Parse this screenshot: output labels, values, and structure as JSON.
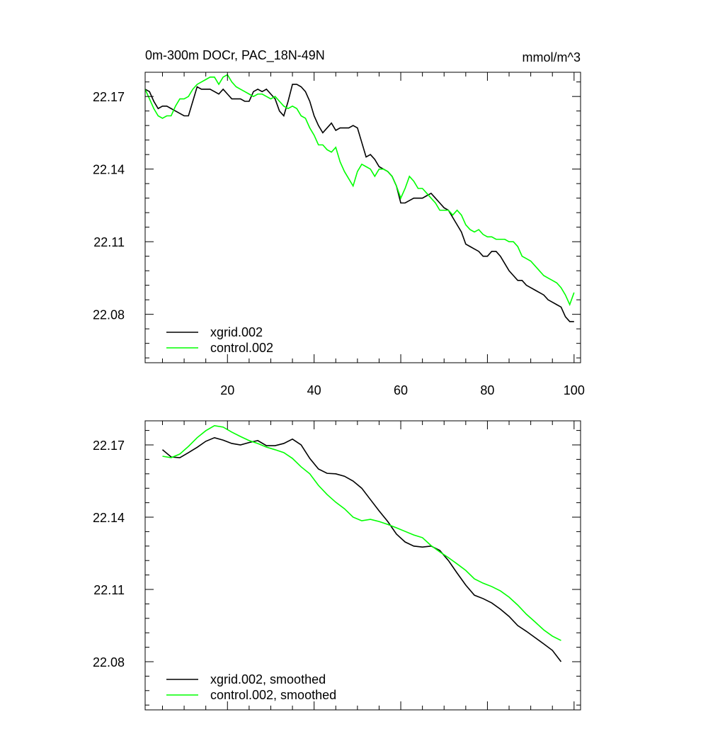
{
  "chart_data": [
    {
      "type": "line",
      "title": "0m-300m DOCr, PAC_18N-49N",
      "units": "mmol/m^3",
      "x": [
        1,
        2,
        3,
        4,
        5,
        6,
        7,
        8,
        9,
        10,
        11,
        12,
        13,
        14,
        15,
        16,
        17,
        18,
        19,
        20,
        21,
        22,
        23,
        24,
        25,
        26,
        27,
        28,
        29,
        30,
        31,
        32,
        33,
        34,
        35,
        36,
        37,
        38,
        39,
        40,
        41,
        42,
        43,
        44,
        45,
        46,
        47,
        48,
        49,
        50,
        51,
        52,
        53,
        54,
        55,
        56,
        57,
        58,
        59,
        60,
        61,
        62,
        63,
        64,
        65,
        66,
        67,
        68,
        69,
        70,
        71,
        72,
        73,
        74,
        75,
        76,
        77,
        78,
        79,
        80,
        81,
        82,
        83,
        84,
        85,
        86,
        87,
        88,
        89,
        90,
        91,
        92,
        93,
        94,
        95,
        96,
        97,
        98,
        99,
        100
      ],
      "series": [
        {
          "name": "xgrid.002",
          "color": "#000000",
          "values": [
            22.173,
            22.172,
            22.168,
            22.165,
            22.166,
            22.166,
            22.165,
            22.164,
            22.163,
            22.162,
            22.162,
            22.168,
            22.174,
            22.173,
            22.173,
            22.173,
            22.172,
            22.171,
            22.173,
            22.171,
            22.169,
            22.169,
            22.169,
            22.168,
            22.168,
            22.172,
            22.173,
            22.172,
            22.173,
            22.171,
            22.169,
            22.164,
            22.162,
            22.168,
            22.175,
            22.175,
            22.174,
            22.172,
            22.168,
            22.162,
            22.158,
            22.155,
            22.157,
            22.159,
            22.156,
            22.157,
            22.157,
            22.157,
            22.158,
            22.157,
            22.151,
            22.145,
            22.146,
            22.144,
            22.141,
            22.14,
            22.139,
            22.137,
            22.133,
            22.126,
            22.126,
            22.127,
            22.128,
            22.128,
            22.128,
            22.129,
            22.13,
            22.128,
            22.126,
            22.124,
            22.123,
            22.12,
            22.117,
            22.114,
            22.109,
            22.108,
            22.107,
            22.106,
            22.104,
            22.104,
            22.106,
            22.106,
            22.104,
            22.101,
            22.098,
            22.096,
            22.094,
            22.094,
            22.092,
            22.091,
            22.09,
            22.089,
            22.088,
            22.086,
            22.085,
            22.084,
            22.083,
            22.079,
            22.077,
            22.077
          ]
        },
        {
          "name": "control.002",
          "color": "#00ff00",
          "values": [
            22.173,
            22.169,
            22.165,
            22.162,
            22.161,
            22.162,
            22.162,
            22.166,
            22.169,
            22.169,
            22.17,
            22.173,
            22.175,
            22.176,
            22.177,
            22.178,
            22.178,
            22.175,
            22.178,
            22.179,
            22.176,
            22.174,
            22.173,
            22.172,
            22.171,
            22.17,
            22.171,
            22.171,
            22.17,
            22.169,
            22.17,
            22.168,
            22.166,
            22.165,
            22.166,
            22.165,
            22.162,
            22.161,
            22.157,
            22.154,
            22.15,
            22.15,
            22.148,
            22.147,
            22.149,
            22.143,
            22.139,
            22.136,
            22.133,
            22.139,
            22.142,
            22.141,
            22.14,
            22.137,
            22.14,
            22.14,
            22.139,
            22.137,
            22.133,
            22.128,
            22.132,
            22.137,
            22.135,
            22.132,
            22.132,
            22.13,
            22.128,
            22.126,
            22.123,
            22.123,
            22.123,
            22.121,
            22.123,
            22.121,
            22.117,
            22.115,
            22.114,
            22.115,
            22.113,
            22.112,
            22.112,
            22.111,
            22.111,
            22.111,
            22.11,
            22.11,
            22.108,
            22.104,
            22.103,
            22.102,
            22.1,
            22.098,
            22.096,
            22.095,
            22.094,
            22.093,
            22.091,
            22.088,
            22.084,
            22.089
          ]
        }
      ],
      "xlim": [
        1,
        101.5
      ],
      "xticks": [
        20,
        40,
        60,
        80,
        100
      ],
      "xminorticks": [
        5,
        10,
        15,
        25,
        30,
        35,
        45,
        50,
        55,
        65,
        70,
        75,
        85,
        90,
        95
      ],
      "ylim": [
        22.06,
        22.18
      ],
      "yticks": [
        22.08,
        22.11,
        22.14,
        22.17
      ],
      "yminorticks": [
        22.062,
        22.068,
        22.074,
        22.086,
        22.092,
        22.098,
        22.104,
        22.116,
        22.122,
        22.128,
        22.134,
        22.146,
        22.152,
        22.158,
        22.164,
        22.176
      ],
      "show_xtick_labels": true,
      "legend": "lower left"
    },
    {
      "type": "line",
      "x": [
        5,
        7,
        9,
        11,
        13,
        15,
        17,
        19,
        21,
        23,
        25,
        27,
        29,
        31,
        33,
        35,
        37,
        39,
        41,
        43,
        45,
        47,
        49,
        51,
        53,
        55,
        57,
        59,
        61,
        63,
        65,
        67,
        69,
        71,
        73,
        75,
        77,
        79,
        81,
        83,
        85,
        87,
        89,
        91,
        93,
        95,
        97
      ],
      "series": [
        {
          "name": "xgrid.002, smoothed",
          "color": "#000000",
          "values": [
            22.168,
            22.165,
            22.1647,
            22.1668,
            22.169,
            22.1715,
            22.173,
            22.172,
            22.1706,
            22.17,
            22.171,
            22.1718,
            22.1697,
            22.1697,
            22.1706,
            22.1724,
            22.17,
            22.1644,
            22.16,
            22.1582,
            22.158,
            22.157,
            22.155,
            22.152,
            22.1473,
            22.1426,
            22.1382,
            22.133,
            22.1297,
            22.128,
            22.1276,
            22.128,
            22.1262,
            22.122,
            22.1168,
            22.1118,
            22.1076,
            22.1062,
            22.1044,
            22.1018,
            22.0988,
            22.095,
            22.0926,
            22.09,
            22.0874,
            22.0847,
            22.08
          ]
        },
        {
          "name": "control.002, smoothed",
          "color": "#00ff00",
          "values": [
            22.1653,
            22.1647,
            22.1662,
            22.1694,
            22.173,
            22.1759,
            22.178,
            22.1774,
            22.1753,
            22.1735,
            22.1718,
            22.1706,
            22.1691,
            22.168,
            22.1668,
            22.1644,
            22.1609,
            22.158,
            22.1532,
            22.1494,
            22.1462,
            22.1435,
            22.14,
            22.1385,
            22.1391,
            22.1382,
            22.137,
            22.1356,
            22.1341,
            22.1326,
            22.1315,
            22.1282,
            22.1256,
            22.1232,
            22.1206,
            22.1179,
            22.1144,
            22.1126,
            22.1112,
            22.1094,
            22.1068,
            22.1035,
            22.0997,
            22.0965,
            22.0932,
            22.0906,
            22.0888
          ]
        }
      ],
      "xlim": [
        1,
        101.5
      ],
      "xticks": [
        20,
        40,
        60,
        80,
        100
      ],
      "xminorticks": [
        5,
        10,
        15,
        25,
        30,
        35,
        45,
        50,
        55,
        65,
        70,
        75,
        85,
        90,
        95
      ],
      "ylim": [
        22.06,
        22.18
      ],
      "yticks": [
        22.08,
        22.11,
        22.14,
        22.17
      ],
      "yminorticks": [
        22.062,
        22.068,
        22.074,
        22.086,
        22.092,
        22.098,
        22.104,
        22.116,
        22.122,
        22.128,
        22.134,
        22.146,
        22.152,
        22.158,
        22.164,
        22.176
      ],
      "show_xtick_labels": false,
      "legend": "lower left"
    }
  ]
}
